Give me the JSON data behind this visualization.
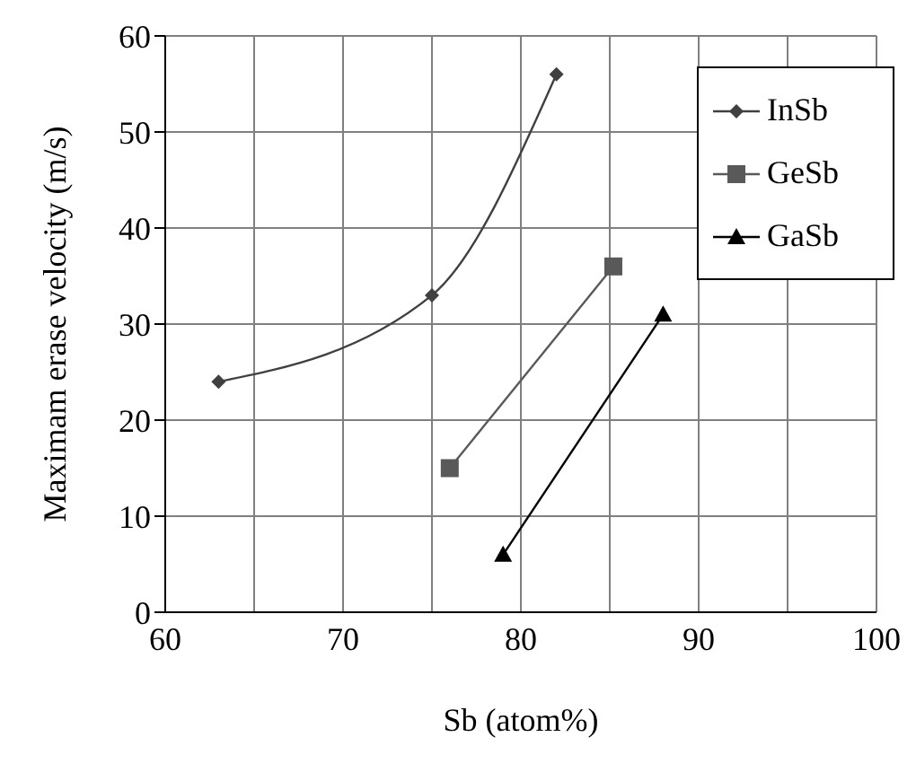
{
  "chart_data": {
    "type": "line",
    "xlabel": "Sb (atom%)",
    "ylabel": "Maximam erase velocity (m/s)",
    "xlim": [
      60,
      100
    ],
    "xticks": [
      60,
      {
        "value": 65,
        "label": null
      },
      70,
      {
        "value": 75,
        "label": null
      },
      80,
      {
        "value": 85,
        "label": null
      },
      90,
      {
        "value": 95,
        "label": null
      },
      100
    ],
    "ylim": [
      0,
      60
    ],
    "yticks": [
      0,
      10,
      20,
      30,
      40,
      50,
      60
    ],
    "grid": true,
    "legend": "top right",
    "series": [
      {
        "name": "InSb",
        "color": "#404040",
        "marker": "diamond",
        "x": [
          63,
          75,
          82
        ],
        "values": [
          24,
          33,
          56
        ]
      },
      {
        "name": "GeSb",
        "color": "#595959",
        "marker": "square",
        "x": [
          76,
          85.2
        ],
        "values": [
          15,
          36
        ]
      },
      {
        "name": "GaSb",
        "color": "#000000",
        "marker": "triangle",
        "x": [
          79,
          88
        ],
        "values": [
          6,
          31
        ]
      }
    ]
  }
}
